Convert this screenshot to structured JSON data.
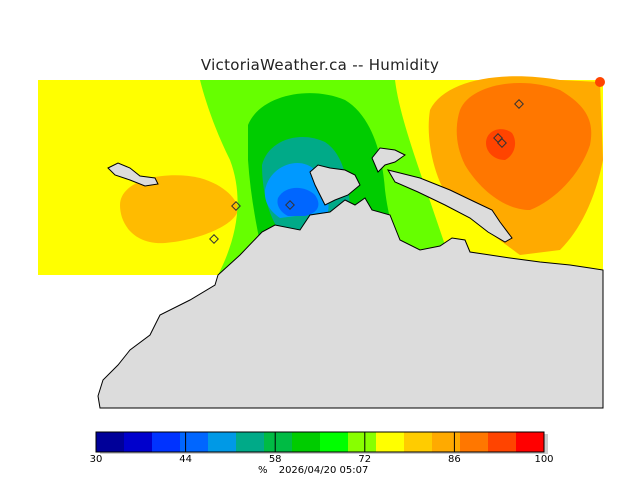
{
  "title": "VictoriaWeather.ca  --  Humidity",
  "colorbar": {
    "colors": [
      "#000099",
      "#0000cc",
      "#0033ff",
      "#0066ff",
      "#0099e6",
      "#00aa88",
      "#00bb44",
      "#00cc00",
      "#00ff00",
      "#88ff00",
      "#ffff00",
      "#ffcc00",
      "#ffaa00",
      "#ff7700",
      "#ff4400",
      "#ff0000"
    ],
    "tick_labels": [
      "30",
      "44",
      "58",
      "72",
      "86",
      "100"
    ]
  },
  "footer": {
    "unit": "%",
    "timestamp": "2026/04/20 05:07"
  },
  "colors": {
    "land": "#dcdcdc",
    "yellow": "#ffff00",
    "green": "#66ff00",
    "orange": "#ffaa00"
  }
}
